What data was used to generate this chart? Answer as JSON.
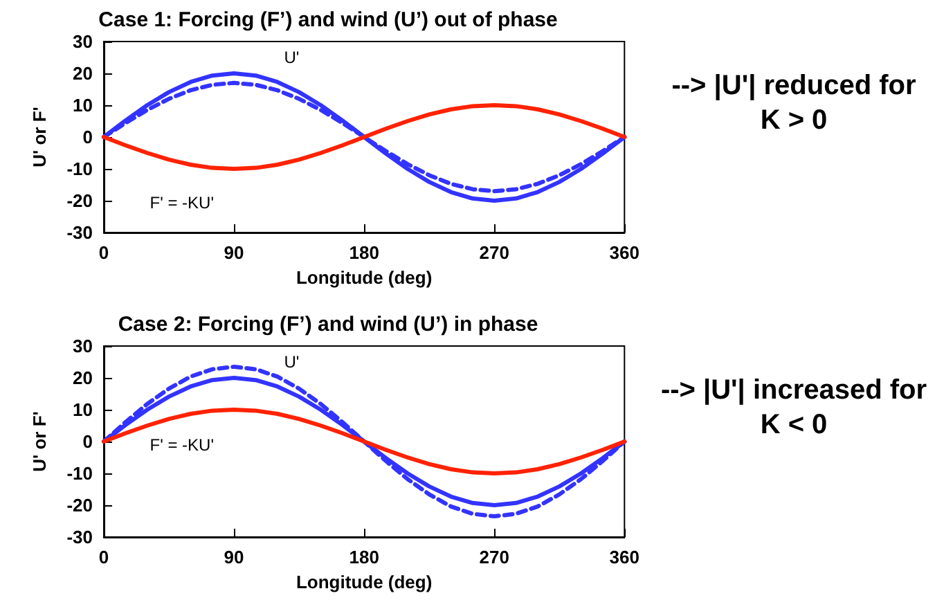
{
  "chart_data": [
    {
      "type": "line",
      "title": "Case 1: Forcing (F’) and wind (U’) out of phase",
      "xlabel": "Longitude (deg)",
      "ylabel": "U' or F'",
      "x": [
        0,
        15,
        30,
        45,
        60,
        75,
        90,
        105,
        120,
        135,
        150,
        165,
        180,
        195,
        210,
        225,
        240,
        255,
        270,
        285,
        300,
        315,
        330,
        345,
        360
      ],
      "xlim": [
        0,
        360
      ],
      "xticks": [
        0,
        90,
        180,
        270,
        360
      ],
      "ylim": [
        -30,
        30
      ],
      "yticks": [
        -30,
        -20,
        -10,
        0,
        10,
        20,
        30
      ],
      "grid": false,
      "legend": false,
      "annotations": [
        "--> |U'| reduced for K > 0"
      ],
      "series": [
        {
          "name": "U'",
          "color": "#3333ff",
          "line_style": "solid",
          "values": [
            0,
            5.2,
            10,
            14.1,
            17.3,
            19.3,
            20,
            19.3,
            17.3,
            14.1,
            10,
            5.2,
            0,
            -5.2,
            -10,
            -14.1,
            -17.3,
            -19.3,
            -20,
            -19.3,
            -17.3,
            -14.1,
            -10,
            -5.2,
            0
          ]
        },
        {
          "color": "#3333ff",
          "line_style": "dashed",
          "values": [
            0,
            4.4,
            8.5,
            12,
            14.7,
            16.4,
            17,
            16.4,
            14.7,
            12,
            8.5,
            4.4,
            0,
            -4.4,
            -8.5,
            -12,
            -14.7,
            -16.4,
            -17,
            -16.4,
            -14.7,
            -12,
            -8.5,
            -4.4,
            0
          ]
        },
        {
          "name": "F' = -KU'",
          "color": "#ff2200",
          "line_style": "solid",
          "values": [
            0,
            -2.6,
            -5,
            -7.1,
            -8.7,
            -9.7,
            -10,
            -9.7,
            -8.7,
            -7.1,
            -5,
            -2.6,
            0,
            2.6,
            5,
            7.1,
            8.7,
            9.7,
            10,
            9.7,
            8.7,
            7.1,
            5,
            2.6,
            0
          ]
        }
      ]
    },
    {
      "type": "line",
      "title": "Case 2: Forcing (F’) and wind (U’) in phase",
      "xlabel": "Longitude (deg)",
      "ylabel": "U' or F'",
      "x": [
        0,
        15,
        30,
        45,
        60,
        75,
        90,
        105,
        120,
        135,
        150,
        165,
        180,
        195,
        210,
        225,
        240,
        255,
        270,
        285,
        300,
        315,
        330,
        345,
        360
      ],
      "xlim": [
        0,
        360
      ],
      "xticks": [
        0,
        90,
        180,
        270,
        360
      ],
      "ylim": [
        -30,
        30
      ],
      "yticks": [
        -30,
        -20,
        -10,
        0,
        10,
        20,
        30
      ],
      "grid": false,
      "legend": false,
      "annotations": [
        "--> |U'| increased for K < 0"
      ],
      "series": [
        {
          "name": "U'",
          "color": "#3333ff",
          "line_style": "solid",
          "values": [
            0,
            5.2,
            10,
            14.1,
            17.3,
            19.3,
            20,
            19.3,
            17.3,
            14.1,
            10,
            5.2,
            0,
            -5.2,
            -10,
            -14.1,
            -17.3,
            -19.3,
            -20,
            -19.3,
            -17.3,
            -14.1,
            -10,
            -5.2,
            0
          ]
        },
        {
          "color": "#3333ff",
          "line_style": "dashed",
          "values": [
            0,
            6.1,
            11.8,
            16.6,
            20.4,
            22.7,
            23.5,
            22.7,
            20.4,
            16.6,
            11.8,
            6.1,
            0,
            -6.1,
            -11.8,
            -16.6,
            -20.4,
            -22.7,
            -23.5,
            -22.7,
            -20.4,
            -16.6,
            -11.8,
            -6.1,
            0
          ]
        },
        {
          "name": "F' = -KU'",
          "color": "#ff2200",
          "line_style": "solid",
          "values": [
            0,
            2.6,
            5,
            7.1,
            8.7,
            9.7,
            10,
            9.7,
            8.7,
            7.1,
            5,
            2.6,
            0,
            -2.6,
            -5,
            -7.1,
            -8.7,
            -9.7,
            -10,
            -9.7,
            -8.7,
            -7.1,
            -5,
            -2.6,
            0
          ]
        }
      ]
    }
  ]
}
